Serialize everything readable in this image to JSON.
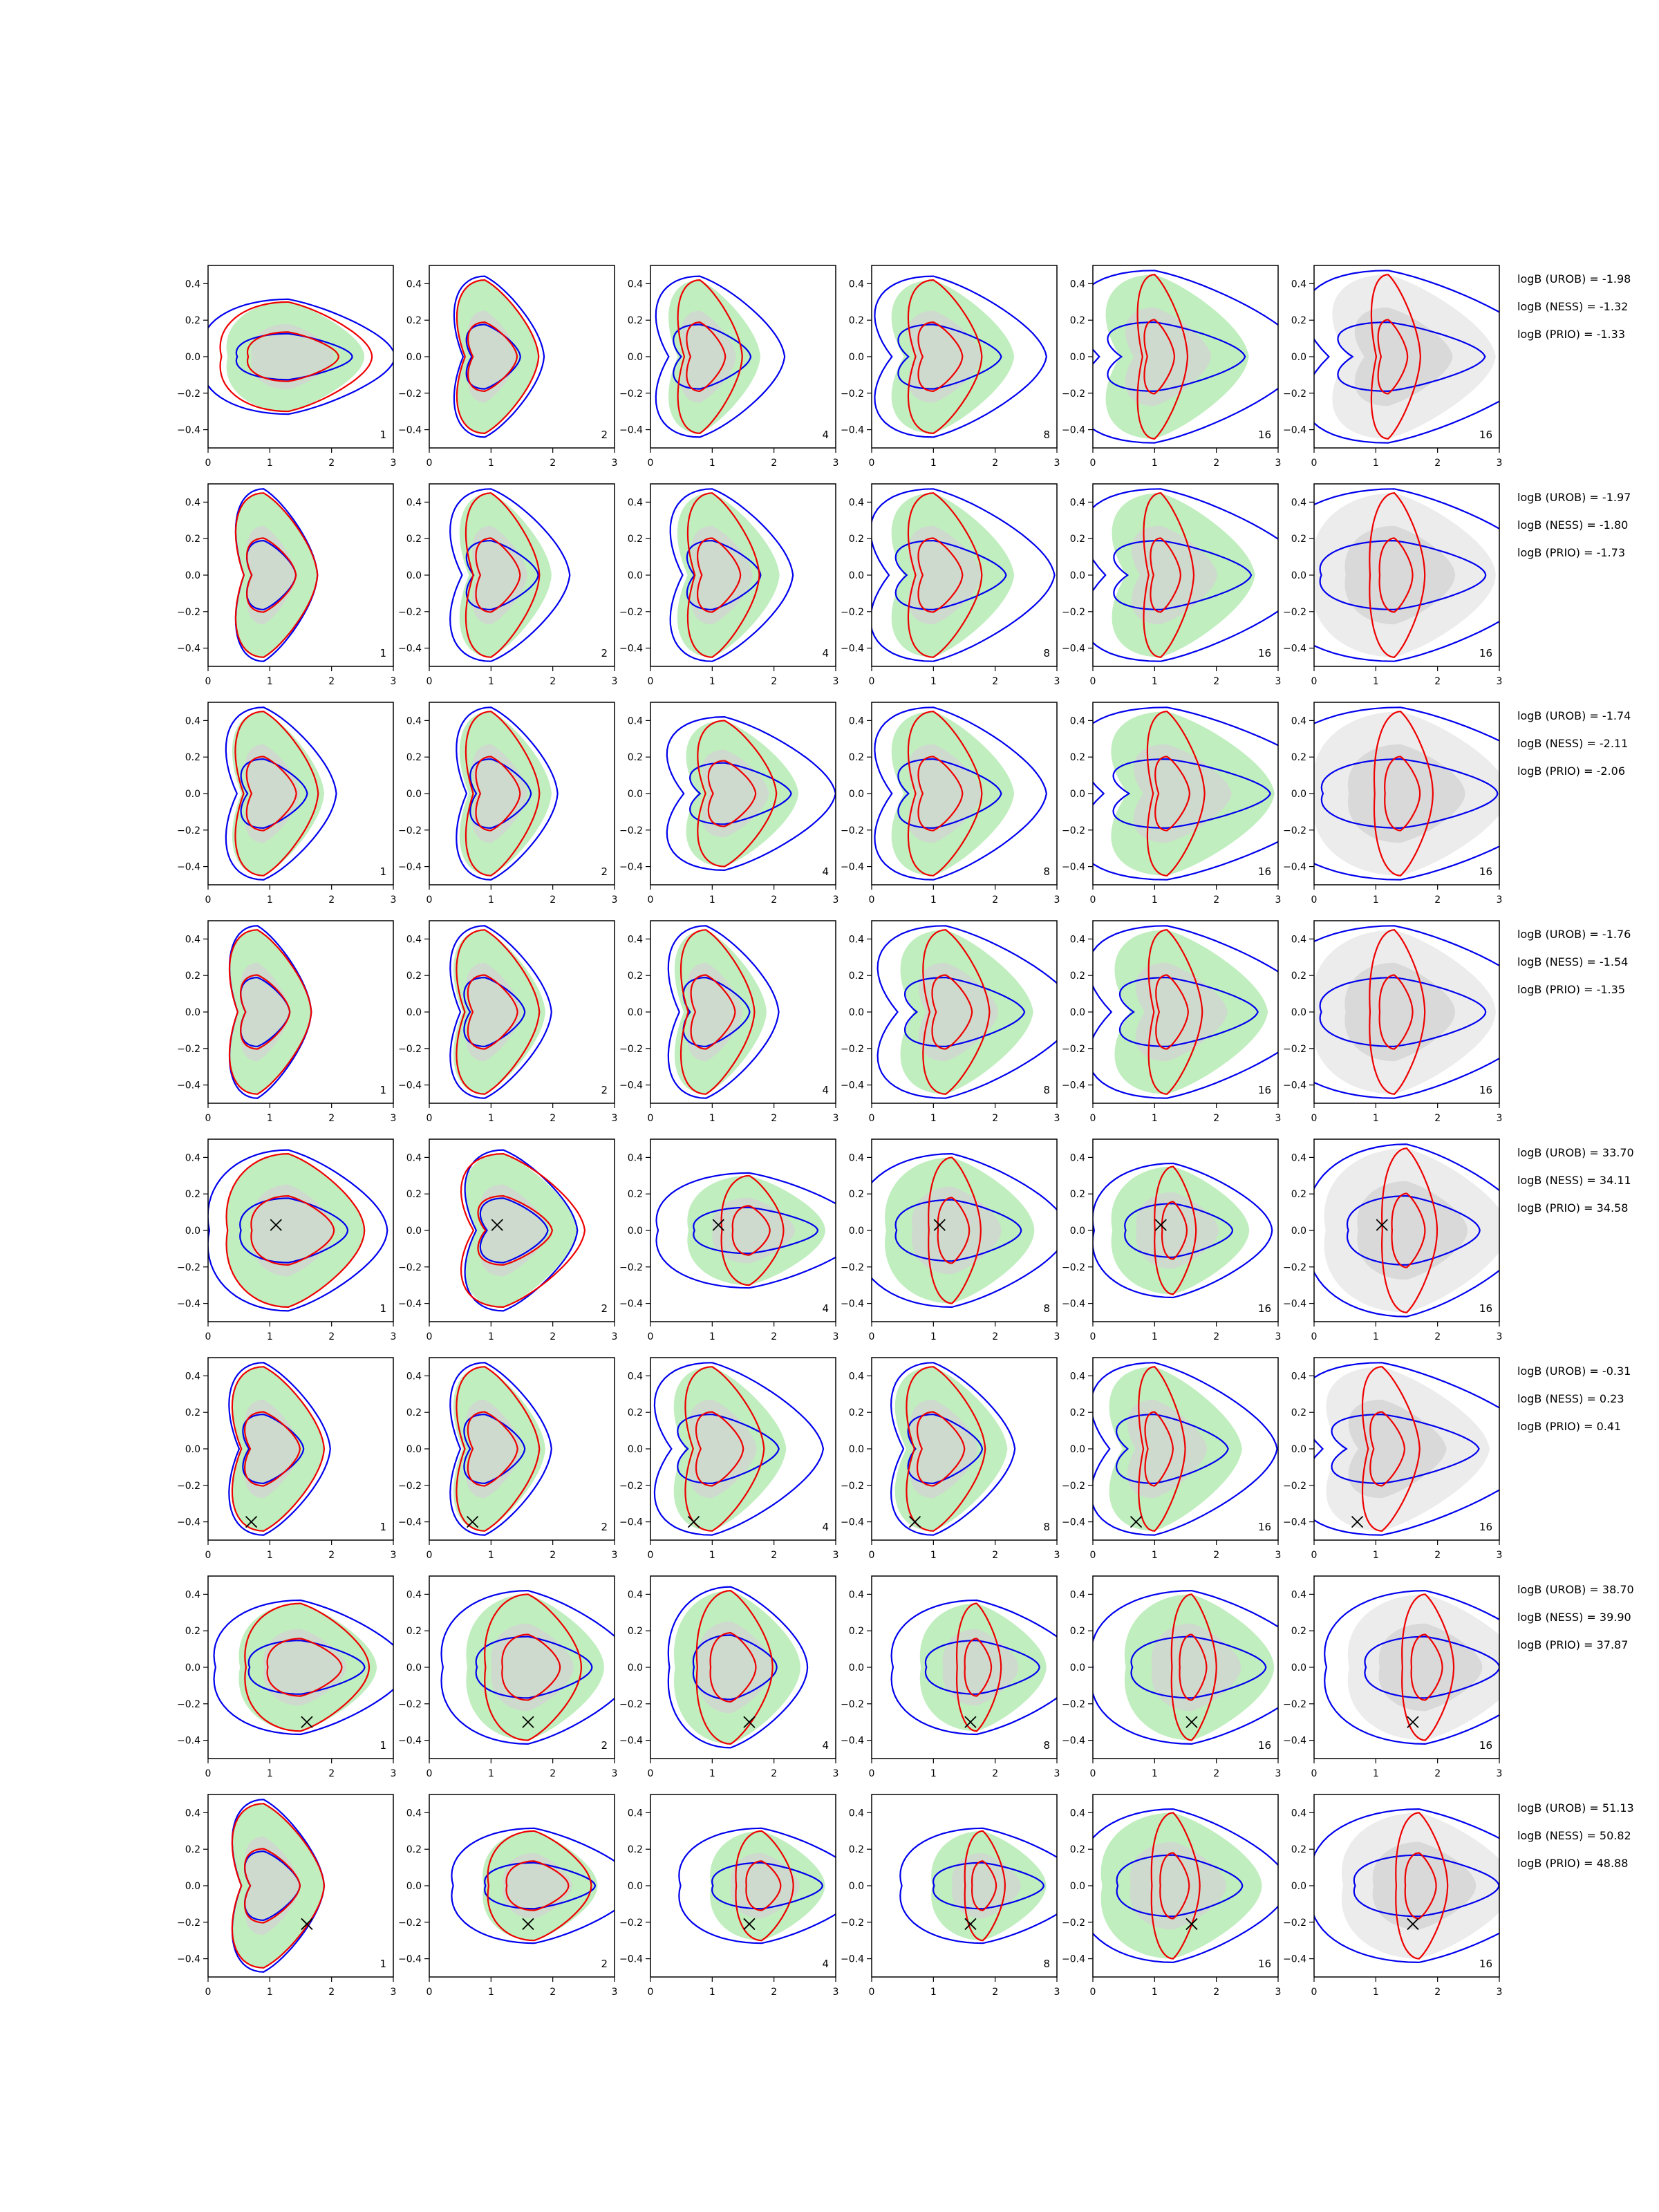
{
  "chart_data": {
    "type": "contour",
    "grid": {
      "rows": 8,
      "cols": 6
    },
    "xlim": [
      0,
      3
    ],
    "ylim": [
      -0.5,
      0.5
    ],
    "x_ticks": [
      0,
      1,
      2,
      3
    ],
    "y_ticks": [
      0.4,
      0.2,
      0.0,
      -0.2,
      -0.4
    ],
    "x_tick_labels": [
      "0",
      "1",
      "2",
      "3"
    ],
    "y_tick_labels": [
      "0.4",
      "0.2",
      "0.0",
      "−0.2",
      "−0.4"
    ],
    "column_labels": [
      "1",
      "2",
      "4",
      "8",
      "16",
      "16"
    ],
    "colors": {
      "green_fill": "#b9ecb7",
      "gray_fill": "#d3d3d3",
      "gray_dark": "#bdbdbd",
      "gray_light": "#ececec",
      "blue": "#0000ee",
      "red": "#ee0000",
      "marker": "#000000"
    },
    "rows": [
      {
        "truth_marker": null,
        "logB": [
          "logB (UROB) = -1.98",
          "logB (NESS) = -1.32",
          "logB (PRIO) = -1.33"
        ],
        "panels": [
          {
            "center": [
              1.3,
              0.0
            ],
            "width": 1.2,
            "height": 0.3,
            "blue_scale": 1.4,
            "red_scale": 1.1
          },
          {
            "center": [
              0.9,
              0.0
            ],
            "width": 0.8,
            "height": 0.42,
            "blue_scale": 1.1,
            "red_scale": 1.0
          },
          {
            "center": [
              0.8,
              0.0
            ],
            "width": 0.9,
            "height": 0.42,
            "blue_scale": 1.4,
            "red_scale": 0.7
          },
          {
            "center": [
              1.0,
              0.0
            ],
            "width": 1.2,
            "height": 0.42,
            "blue_scale": 1.4,
            "red_scale": 0.6
          },
          {
            "center": [
              1.0,
              0.0
            ],
            "width": 1.4,
            "height": 0.45,
            "blue_scale": 1.6,
            "red_scale": 0.35
          },
          {
            "center": [
              1.2,
              0.0
            ],
            "width": 1.6,
            "height": 0.45,
            "blue_scale": 1.5,
            "red_scale": 0.3
          }
        ]
      },
      {
        "truth_marker": null,
        "logB": [
          "logB (UROB) = -1.97",
          "logB (NESS) = -1.80",
          "logB (PRIO) = -1.73"
        ],
        "panels": [
          {
            "center": [
              0.9,
              0.0
            ],
            "width": 0.8,
            "height": 0.45,
            "blue_scale": 1.0,
            "red_scale": 1.0
          },
          {
            "center": [
              1.0,
              0.0
            ],
            "width": 0.9,
            "height": 0.45,
            "blue_scale": 1.3,
            "red_scale": 0.8
          },
          {
            "center": [
              1.0,
              0.0
            ],
            "width": 1.0,
            "height": 0.45,
            "blue_scale": 1.2,
            "red_scale": 0.7
          },
          {
            "center": [
              1.0,
              0.0
            ],
            "width": 1.2,
            "height": 0.45,
            "blue_scale": 1.5,
            "red_scale": 0.6
          },
          {
            "center": [
              1.1,
              0.0
            ],
            "width": 1.4,
            "height": 0.45,
            "blue_scale": 1.6,
            "red_scale": 0.35
          },
          {
            "center": [
              1.3,
              0.0
            ],
            "width": 1.6,
            "height": 0.45,
            "blue_scale": 1.5,
            "red_scale": 0.3
          }
        ]
      },
      {
        "truth_marker": null,
        "logB": [
          "logB (UROB) = -1.74",
          "logB (NESS) = -2.11",
          "logB (PRIO) = -2.06"
        ],
        "panels": [
          {
            "center": [
              0.9,
              0.0
            ],
            "width": 0.9,
            "height": 0.45,
            "blue_scale": 1.2,
            "red_scale": 0.9
          },
          {
            "center": [
              1.0,
              0.0
            ],
            "width": 0.9,
            "height": 0.45,
            "blue_scale": 1.1,
            "red_scale": 0.8
          },
          {
            "center": [
              1.2,
              0.0
            ],
            "width": 1.1,
            "height": 0.4,
            "blue_scale": 1.5,
            "red_scale": 0.7
          },
          {
            "center": [
              1.0,
              0.0
            ],
            "width": 1.2,
            "height": 0.45,
            "blue_scale": 1.4,
            "red_scale": 0.6
          },
          {
            "center": [
              1.2,
              0.0
            ],
            "width": 1.6,
            "height": 0.45,
            "blue_scale": 1.6,
            "red_scale": 0.35
          },
          {
            "center": [
              1.4,
              0.0
            ],
            "width": 1.7,
            "height": 0.45,
            "blue_scale": 1.5,
            "red_scale": 0.3
          }
        ]
      },
      {
        "truth_marker": null,
        "logB": [
          "logB (UROB) = -1.76",
          "logB (NESS) = -1.54",
          "logB (PRIO) = -1.35"
        ],
        "panels": [
          {
            "center": [
              0.8,
              0.0
            ],
            "width": 0.8,
            "height": 0.45,
            "blue_scale": 1.0,
            "red_scale": 1.0
          },
          {
            "center": [
              0.9,
              0.0
            ],
            "width": 0.9,
            "height": 0.45,
            "blue_scale": 1.1,
            "red_scale": 0.9
          },
          {
            "center": [
              0.9,
              0.0
            ],
            "width": 0.9,
            "height": 0.45,
            "blue_scale": 1.2,
            "red_scale": 0.8
          },
          {
            "center": [
              1.2,
              0.0
            ],
            "width": 1.3,
            "height": 0.45,
            "blue_scale": 1.5,
            "red_scale": 0.5
          },
          {
            "center": [
              1.2,
              0.0
            ],
            "width": 1.5,
            "height": 0.45,
            "blue_scale": 1.5,
            "red_scale": 0.35
          },
          {
            "center": [
              1.3,
              0.0
            ],
            "width": 1.6,
            "height": 0.45,
            "blue_scale": 1.5,
            "red_scale": 0.3
          }
        ]
      },
      {
        "truth_marker": [
          1.1,
          0.03
        ],
        "logB": [
          "logB (UROB) = 33.70",
          "logB (NESS) = 34.11",
          "logB (PRIO) = 34.58"
        ],
        "panels": [
          {
            "center": [
              1.3,
              0.0
            ],
            "width": 1.2,
            "height": 0.42,
            "blue_scale": 1.3,
            "red_scale": 1.0
          },
          {
            "center": [
              1.2,
              0.0
            ],
            "width": 1.1,
            "height": 0.42,
            "blue_scale": 1.0,
            "red_scale": 1.1
          },
          {
            "center": [
              1.6,
              0.0
            ],
            "width": 1.2,
            "height": 0.3,
            "blue_scale": 1.5,
            "red_scale": 0.45
          },
          {
            "center": [
              1.3,
              0.0
            ],
            "width": 1.3,
            "height": 0.4,
            "blue_scale": 1.4,
            "red_scale": 0.35
          },
          {
            "center": [
              1.3,
              0.0
            ],
            "width": 1.2,
            "height": 0.35,
            "blue_scale": 1.3,
            "red_scale": 0.3
          },
          {
            "center": [
              1.5,
              0.0
            ],
            "width": 1.6,
            "height": 0.45,
            "blue_scale": 1.2,
            "red_scale": 0.3
          }
        ]
      },
      {
        "truth_marker": [
          0.7,
          -0.4
        ],
        "logB": [
          "logB (UROB) = -0.31",
          "logB (NESS) = 0.23",
          "logB (PRIO) = 0.41"
        ],
        "panels": [
          {
            "center": [
              0.9,
              0.0
            ],
            "width": 0.9,
            "height": 0.45,
            "blue_scale": 1.1,
            "red_scale": 1.0
          },
          {
            "center": [
              0.9,
              0.0
            ],
            "width": 0.9,
            "height": 0.45,
            "blue_scale": 1.1,
            "red_scale": 0.9
          },
          {
            "center": [
              1.0,
              0.0
            ],
            "width": 1.1,
            "height": 0.45,
            "blue_scale": 1.5,
            "red_scale": 0.7
          },
          {
            "center": [
              1.0,
              0.0
            ],
            "width": 1.1,
            "height": 0.45,
            "blue_scale": 1.1,
            "red_scale": 0.7
          },
          {
            "center": [
              1.0,
              0.0
            ],
            "width": 1.3,
            "height": 0.45,
            "blue_scale": 1.4,
            "red_scale": 0.35
          },
          {
            "center": [
              1.1,
              0.0
            ],
            "width": 1.6,
            "height": 0.45,
            "blue_scale": 1.5,
            "red_scale": 0.35
          }
        ]
      },
      {
        "truth_marker": [
          1.6,
          -0.3
        ],
        "logB": [
          "logB (UROB) = 38.70",
          "logB (NESS) = 39.90",
          "logB (PRIO) = 37.87"
        ],
        "panels": [
          {
            "center": [
              1.5,
              0.0
            ],
            "width": 1.2,
            "height": 0.35,
            "blue_scale": 1.4,
            "red_scale": 0.9
          },
          {
            "center": [
              1.6,
              0.0
            ],
            "width": 1.2,
            "height": 0.4,
            "blue_scale": 1.4,
            "red_scale": 0.7
          },
          {
            "center": [
              1.3,
              0.0
            ],
            "width": 1.1,
            "height": 0.42,
            "blue_scale": 1.1,
            "red_scale": 0.6
          },
          {
            "center": [
              1.7,
              0.0
            ],
            "width": 1.1,
            "height": 0.35,
            "blue_scale": 1.5,
            "red_scale": 0.35
          },
          {
            "center": [
              1.6,
              0.0
            ],
            "width": 1.3,
            "height": 0.4,
            "blue_scale": 1.5,
            "red_scale": 0.3
          },
          {
            "center": [
              1.8,
              0.0
            ],
            "width": 1.5,
            "height": 0.4,
            "blue_scale": 1.3,
            "red_scale": 0.3
          }
        ]
      },
      {
        "truth_marker": [
          1.6,
          -0.21
        ],
        "logB": [
          "logB (UROB) = 51.13",
          "logB (NESS) = 50.82",
          "logB (PRIO) = 48.88"
        ],
        "panels": [
          {
            "center": [
              0.9,
              0.0
            ],
            "width": 0.9,
            "height": 0.45,
            "blue_scale": 1.0,
            "red_scale": 1.0
          },
          {
            "center": [
              1.7,
              0.0
            ],
            "width": 1.0,
            "height": 0.3,
            "blue_scale": 1.6,
            "red_scale": 0.9
          },
          {
            "center": [
              1.8,
              0.0
            ],
            "width": 1.0,
            "height": 0.3,
            "blue_scale": 1.6,
            "red_scale": 0.5
          },
          {
            "center": [
              1.8,
              0.0
            ],
            "width": 1.0,
            "height": 0.3,
            "blue_scale": 1.6,
            "red_scale": 0.35
          },
          {
            "center": [
              1.3,
              0.0
            ],
            "width": 1.4,
            "height": 0.4,
            "blue_scale": 1.3,
            "red_scale": 0.3
          },
          {
            "center": [
              1.7,
              0.0
            ],
            "width": 1.5,
            "height": 0.4,
            "blue_scale": 1.4,
            "red_scale": 0.3
          }
        ]
      }
    ]
  }
}
